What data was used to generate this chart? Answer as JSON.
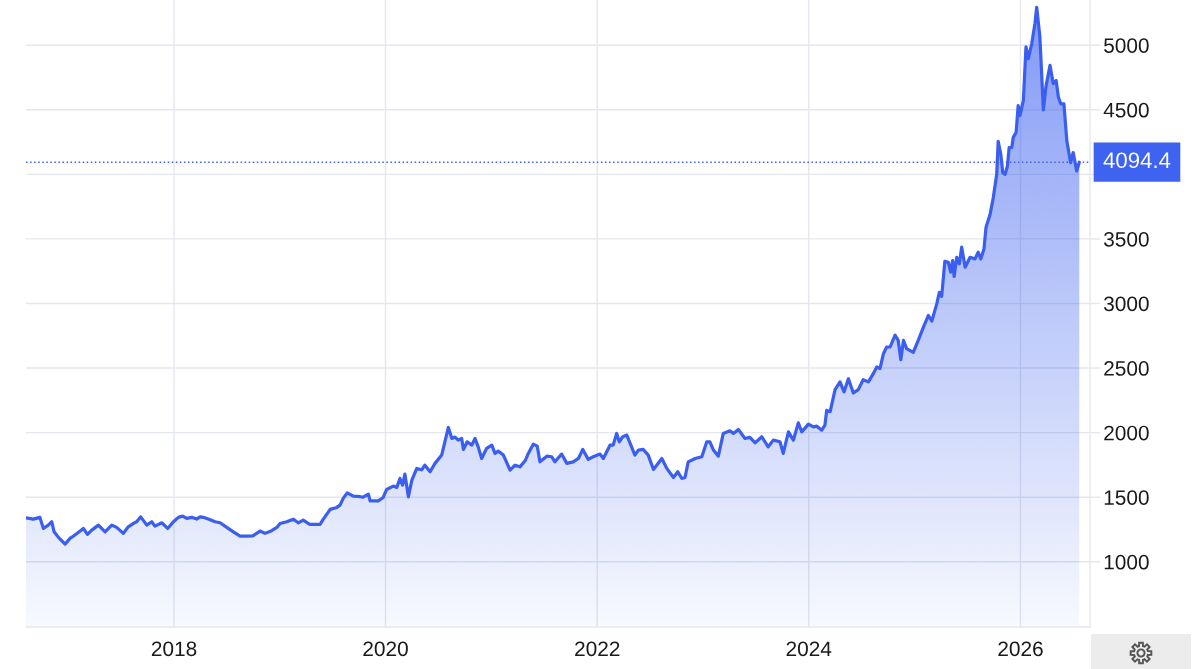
{
  "chart_data": {
    "type": "area",
    "color": "#3a5ef0",
    "x": [
      "2016-08-08",
      "2016-09-02",
      "2016-09-25",
      "2016-10-07",
      "2016-10-24",
      "2016-11-05",
      "2016-11-13",
      "2016-11-28",
      "2016-12-21",
      "2017-01-07",
      "2017-01-24",
      "2017-02-11",
      "2017-02-22",
      "2017-03-08",
      "2017-03-23",
      "2017-04-15",
      "2017-05-08",
      "2017-05-31",
      "2017-06-17",
      "2017-07-10",
      "2017-07-27",
      "2017-08-14",
      "2017-08-25",
      "2017-09-08",
      "2017-09-29",
      "2017-10-16",
      "2017-10-27",
      "2017-11-20",
      "2017-12-10",
      "2017-12-30",
      "2018-01-16",
      "2018-01-31",
      "2018-02-14",
      "2018-03-03",
      "2018-03-20",
      "2018-04-01",
      "2018-04-12",
      "2018-04-29",
      "2018-05-23",
      "2018-06-09",
      "2018-07-02",
      "2018-07-25",
      "2018-08-17",
      "2018-09-09",
      "2018-09-30",
      "2018-10-25",
      "2018-11-11",
      "2018-12-04",
      "2018-12-22",
      "2019-01-02",
      "2019-01-25",
      "2019-02-17",
      "2019-03-06",
      "2019-03-23",
      "2019-04-15",
      "2019-05-20",
      "2019-05-29",
      "2019-06-24",
      "2019-07-17",
      "2019-07-28",
      "2019-08-08",
      "2019-08-22",
      "2019-09-12",
      "2019-09-29",
      "2019-10-16",
      "2019-11-03",
      "2019-11-09",
      "2019-12-07",
      "2019-12-24",
      "2020-01-05",
      "2020-01-28",
      "2020-02-09",
      "2020-02-20",
      "2020-02-29",
      "2020-03-08",
      "2020-03-20",
      "2020-04-01",
      "2020-04-18",
      "2020-05-05",
      "2020-05-16",
      "2020-06-03",
      "2020-06-20",
      "2020-07-13",
      "2020-08-05",
      "2020-08-17",
      "2020-08-28",
      "2020-09-08",
      "2020-09-20",
      "2020-09-26",
      "2020-10-09",
      "2020-10-25",
      "2020-11-05",
      "2020-11-16",
      "2020-11-28",
      "2020-12-15",
      "2021-01-02",
      "2021-01-13",
      "2021-01-24",
      "2021-02-11",
      "2021-03-06",
      "2021-03-23",
      "2021-04-09",
      "2021-04-27",
      "2021-05-08",
      "2021-05-25",
      "2021-06-08",
      "2021-06-17",
      "2021-07-11",
      "2021-07-28",
      "2021-08-08",
      "2021-08-31",
      "2021-09-18",
      "2021-10-10",
      "2021-10-28",
      "2021-11-12",
      "2021-12-01",
      "2021-12-18",
      "2022-01-11",
      "2022-01-22",
      "2022-02-14",
      "2022-02-25",
      "2022-03-09",
      "2022-03-18",
      "2022-03-30",
      "2022-04-13",
      "2022-05-11",
      "2022-05-23",
      "2022-06-09",
      "2022-06-26",
      "2022-07-14",
      "2022-08-12",
      "2022-08-29",
      "2022-09-21",
      "2022-10-06",
      "2022-10-20",
      "2022-10-31",
      "2022-11-11",
      "2022-12-05",
      "2022-12-28",
      "2023-01-14",
      "2023-01-25",
      "2023-02-06",
      "2023-02-23",
      "2023-03-12",
      "2023-04-04",
      "2023-04-16",
      "2023-05-03",
      "2023-05-26",
      "2023-06-12",
      "2023-06-30",
      "2023-07-23",
      "2023-08-14",
      "2023-09-01",
      "2023-09-24",
      "2023-10-05",
      "2023-10-23",
      "2023-11-09",
      "2023-11-26",
      "2023-12-08",
      "2023-12-31",
      "2024-01-17",
      "2024-01-29",
      "2024-02-15",
      "2024-02-26",
      "2024-03-03",
      "2024-03-15",
      "2024-04-01",
      "2024-04-18",
      "2024-05-02",
      "2024-05-17",
      "2024-06-03",
      "2024-06-20",
      "2024-07-07",
      "2024-07-25",
      "2024-08-11",
      "2024-08-23",
      "2024-09-03",
      "2024-09-15",
      "2024-09-26",
      "2024-10-08",
      "2024-10-25",
      "2024-11-05",
      "2024-11-14",
      "2024-11-23",
      "2024-12-04",
      "2024-12-27",
      "2025-01-13",
      "2025-01-31",
      "2025-02-17",
      "2025-03-01",
      "2025-03-18",
      "2025-03-27",
      "2025-04-04",
      "2025-04-15",
      "2025-04-27",
      "2025-05-05",
      "2025-05-12",
      "2025-05-17",
      "2025-05-26",
      "2025-06-04",
      "2025-06-12",
      "2025-06-24",
      "2025-07-11",
      "2025-07-28",
      "2025-08-08",
      "2025-08-17",
      "2025-08-28",
      "2025-09-04",
      "2025-09-18",
      "2025-09-29",
      "2025-10-11",
      "2025-10-16",
      "2025-10-25",
      "2025-11-01",
      "2025-11-09",
      "2025-11-17",
      "2025-11-23",
      "2025-12-02",
      "2025-12-07",
      "2025-12-17",
      "2025-12-24",
      "2025-12-30",
      "2026-01-11",
      "2026-01-20",
      "2026-01-28",
      "2026-02-09",
      "2026-02-20",
      "2026-02-26",
      "2026-03-09",
      "2026-03-21",
      "2026-03-30",
      "2026-04-13",
      "2026-04-24",
      "2026-05-04",
      "2026-05-12",
      "2026-05-20",
      "2026-05-31",
      "2026-06-10",
      "2026-06-23",
      "2026-07-02",
      "2026-07-14",
      "2026-07-23"
    ],
    "values": [
      1340,
      1330,
      1344,
      1258,
      1284,
      1310,
      1232,
      1189,
      1137,
      1181,
      1207,
      1238,
      1258,
      1212,
      1245,
      1284,
      1232,
      1284,
      1266,
      1220,
      1271,
      1297,
      1310,
      1348,
      1284,
      1310,
      1276,
      1302,
      1258,
      1310,
      1344,
      1354,
      1336,
      1344,
      1331,
      1348,
      1344,
      1331,
      1310,
      1302,
      1266,
      1232,
      1199,
      1199,
      1201,
      1238,
      1220,
      1241,
      1266,
      1297,
      1310,
      1330,
      1302,
      1323,
      1289,
      1289,
      1323,
      1406,
      1421,
      1439,
      1491,
      1534,
      1509,
      1506,
      1500,
      1524,
      1472,
      1472,
      1498,
      1560,
      1586,
      1576,
      1645,
      1594,
      1679,
      1503,
      1632,
      1723,
      1712,
      1748,
      1697,
      1762,
      1826,
      2040,
      1955,
      1966,
      1942,
      1955,
      1870,
      1929,
      1903,
      1955,
      1890,
      1800,
      1878,
      1903,
      1839,
      1857,
      1826,
      1710,
      1748,
      1735,
      1782,
      1839,
      1911,
      1895,
      1774,
      1818,
      1813,
      1774,
      1834,
      1762,
      1774,
      1800,
      1870,
      1793,
      1813,
      1834,
      1800,
      1903,
      1903,
      1994,
      1929,
      1968,
      1981,
      1826,
      1865,
      1870,
      1826,
      1715,
      1800,
      1723,
      1653,
      1697,
      1645,
      1653,
      1774,
      1800,
      1813,
      1929,
      1929,
      1865,
      1818,
      1994,
      2014,
      1994,
      2025,
      1955,
      1963,
      1921,
      1968,
      1890,
      1942,
      1929,
      1839,
      2006,
      1942,
      2076,
      2006,
      2066,
      2045,
      2050,
      2019,
      2058,
      2172,
      2162,
      2333,
      2393,
      2315,
      2418,
      2307,
      2333,
      2410,
      2393,
      2457,
      2508,
      2496,
      2612,
      2663,
      2663,
      2755,
      2714,
      2565,
      2714,
      2650,
      2622,
      2714,
      2817,
      2907,
      2864,
      2997,
      3087,
      3055,
      3327,
      3319,
      3242,
      3332,
      3209,
      3358,
      3307,
      3436,
      3281,
      3358,
      3345,
      3397,
      3345,
      3423,
      3590,
      3689,
      3818,
      4000,
      4255,
      4157,
      4013,
      4000,
      4065,
      4208,
      4208,
      4286,
      4325,
      4533,
      4455,
      4572,
      4987,
      4896,
      5013,
      5169,
      5294,
      5065,
      4499,
      4681,
      4844,
      4702,
      4727,
      4597,
      4546,
      4546,
      4260,
      4091,
      4169,
      4026,
      4094
    ],
    "xlim": [
      "2016-08-08",
      "2026-08-29"
    ],
    "ylim": [
      495,
      5350
    ],
    "xticks": [
      "2018",
      "2020",
      "2022",
      "2024",
      "2026"
    ],
    "yticks": [
      1000,
      1500,
      2000,
      2500,
      3000,
      3500,
      {
        "value": 4000,
        "label": null
      },
      4500,
      5000
    ],
    "grid": true,
    "ref_lines": [
      {
        "axis": "y",
        "value": 4094.4,
        "label": "4094.4",
        "color": "#3d63f0",
        "line_style": "dotted"
      }
    ]
  }
}
